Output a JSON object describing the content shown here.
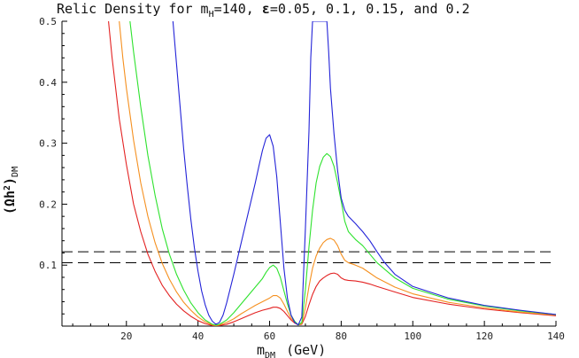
{
  "chart_data": {
    "type": "line",
    "title_parts": {
      "prefix": "Relic Density for m",
      "prefix_sub": "H",
      "middle": "=140, ",
      "epsilon": "ε",
      "suffix": "=0.05, 0.1, 0.15, and 0.2"
    },
    "xlabel_parts": {
      "main": "m",
      "sub": "DM",
      "unit": "(GeV)"
    },
    "ylabel_parts": {
      "main": "(Ωh",
      "sup": "2",
      "close": ")",
      "sub": "DM"
    },
    "xlim": [
      2,
      140
    ],
    "ylim": [
      0,
      0.5
    ],
    "xticks": [
      20,
      40,
      60,
      80,
      100,
      120,
      140
    ],
    "xtick_labels": [
      "20",
      "40",
      "60",
      "80",
      "100",
      "120",
      "140"
    ],
    "yticks": [
      0.1,
      0.2,
      0.3,
      0.4,
      0.5
    ],
    "ytick_labels": [
      "0.1",
      "0.2",
      "0.3",
      "0.4",
      "0.5"
    ],
    "reference_lines": [
      0.104,
      0.122
    ],
    "series": [
      {
        "color": "#e32222",
        "points": [
          [
            15,
            0.5
          ],
          [
            16,
            0.44
          ],
          [
            18,
            0.34
          ],
          [
            20,
            0.265
          ],
          [
            22,
            0.2
          ],
          [
            24,
            0.155
          ],
          [
            26,
            0.118
          ],
          [
            28,
            0.09
          ],
          [
            30,
            0.067
          ],
          [
            32,
            0.05
          ],
          [
            34,
            0.036
          ],
          [
            36,
            0.025
          ],
          [
            38,
            0.016
          ],
          [
            40,
            0.009
          ],
          [
            42,
            0.004
          ],
          [
            44,
            0.001
          ],
          [
            45,
            0.0003
          ],
          [
            46,
            0.001
          ],
          [
            48,
            0.003
          ],
          [
            50,
            0.007
          ],
          [
            52,
            0.012
          ],
          [
            54,
            0.017
          ],
          [
            56,
            0.022
          ],
          [
            58,
            0.026
          ],
          [
            60,
            0.029
          ],
          [
            61,
            0.031
          ],
          [
            62,
            0.031
          ],
          [
            63,
            0.029
          ],
          [
            64,
            0.024
          ],
          [
            65,
            0.017
          ],
          [
            66,
            0.01
          ],
          [
            67,
            0.005
          ],
          [
            68,
            0.002
          ],
          [
            69,
            0.003
          ],
          [
            70,
            0.016
          ],
          [
            71,
            0.035
          ],
          [
            72,
            0.052
          ],
          [
            73,
            0.065
          ],
          [
            74,
            0.074
          ],
          [
            75,
            0.079
          ],
          [
            76,
            0.083
          ],
          [
            77,
            0.086
          ],
          [
            78,
            0.087
          ],
          [
            79,
            0.085
          ],
          [
            80,
            0.079
          ],
          [
            81,
            0.076
          ],
          [
            82,
            0.075
          ],
          [
            84,
            0.074
          ],
          [
            86,
            0.072
          ],
          [
            88,
            0.069
          ],
          [
            90,
            0.065
          ],
          [
            95,
            0.056
          ],
          [
            100,
            0.047
          ],
          [
            110,
            0.036
          ],
          [
            120,
            0.028
          ],
          [
            130,
            0.022
          ],
          [
            140,
            0.017
          ]
        ]
      },
      {
        "color": "#f5901f",
        "points": [
          [
            18,
            0.5
          ],
          [
            19,
            0.44
          ],
          [
            20,
            0.39
          ],
          [
            22,
            0.305
          ],
          [
            24,
            0.235
          ],
          [
            26,
            0.18
          ],
          [
            28,
            0.137
          ],
          [
            30,
            0.103
          ],
          [
            32,
            0.077
          ],
          [
            34,
            0.056
          ],
          [
            36,
            0.039
          ],
          [
            38,
            0.026
          ],
          [
            40,
            0.015
          ],
          [
            42,
            0.007
          ],
          [
            44,
            0.002
          ],
          [
            45,
            0.0008
          ],
          [
            46,
            0.002
          ],
          [
            48,
            0.006
          ],
          [
            50,
            0.012
          ],
          [
            52,
            0.02
          ],
          [
            54,
            0.027
          ],
          [
            56,
            0.034
          ],
          [
            58,
            0.04
          ],
          [
            60,
            0.046
          ],
          [
            61,
            0.05
          ],
          [
            62,
            0.05
          ],
          [
            63,
            0.046
          ],
          [
            64,
            0.036
          ],
          [
            65,
            0.024
          ],
          [
            66,
            0.013
          ],
          [
            67,
            0.006
          ],
          [
            68,
            0.002
          ],
          [
            69,
            0.004
          ],
          [
            70,
            0.03
          ],
          [
            71,
            0.065
          ],
          [
            72,
            0.095
          ],
          [
            73,
            0.115
          ],
          [
            74,
            0.128
          ],
          [
            75,
            0.137
          ],
          [
            76,
            0.142
          ],
          [
            77,
            0.144
          ],
          [
            78,
            0.141
          ],
          [
            79,
            0.132
          ],
          [
            80,
            0.118
          ],
          [
            81,
            0.108
          ],
          [
            82,
            0.104
          ],
          [
            84,
            0.1
          ],
          [
            86,
            0.095
          ],
          [
            88,
            0.087
          ],
          [
            90,
            0.079
          ],
          [
            95,
            0.064
          ],
          [
            100,
            0.053
          ],
          [
            110,
            0.039
          ],
          [
            120,
            0.03
          ],
          [
            130,
            0.023
          ],
          [
            140,
            0.018
          ]
        ]
      },
      {
        "color": "#2ee22e",
        "points": [
          [
            21,
            0.5
          ],
          [
            22,
            0.45
          ],
          [
            24,
            0.36
          ],
          [
            26,
            0.28
          ],
          [
            28,
            0.215
          ],
          [
            30,
            0.16
          ],
          [
            32,
            0.118
          ],
          [
            34,
            0.085
          ],
          [
            36,
            0.059
          ],
          [
            38,
            0.038
          ],
          [
            40,
            0.022
          ],
          [
            42,
            0.01
          ],
          [
            44,
            0.003
          ],
          [
            45,
            0.0015
          ],
          [
            46,
            0.003
          ],
          [
            48,
            0.01
          ],
          [
            50,
            0.022
          ],
          [
            52,
            0.036
          ],
          [
            54,
            0.05
          ],
          [
            56,
            0.064
          ],
          [
            58,
            0.078
          ],
          [
            59,
            0.088
          ],
          [
            60,
            0.096
          ],
          [
            61,
            0.1
          ],
          [
            62,
            0.095
          ],
          [
            63,
            0.08
          ],
          [
            64,
            0.058
          ],
          [
            65,
            0.036
          ],
          [
            66,
            0.018
          ],
          [
            67,
            0.008
          ],
          [
            68,
            0.002
          ],
          [
            69,
            0.006
          ],
          [
            70,
            0.06
          ],
          [
            71,
            0.13
          ],
          [
            72,
            0.19
          ],
          [
            73,
            0.235
          ],
          [
            74,
            0.262
          ],
          [
            75,
            0.277
          ],
          [
            76,
            0.283
          ],
          [
            77,
            0.278
          ],
          [
            78,
            0.262
          ],
          [
            79,
            0.235
          ],
          [
            80,
            0.205
          ],
          [
            81,
            0.172
          ],
          [
            82,
            0.155
          ],
          [
            84,
            0.142
          ],
          [
            86,
            0.132
          ],
          [
            88,
            0.118
          ],
          [
            90,
            0.104
          ],
          [
            95,
            0.079
          ],
          [
            100,
            0.062
          ],
          [
            110,
            0.044
          ],
          [
            120,
            0.033
          ],
          [
            130,
            0.025
          ],
          [
            140,
            0.019
          ]
        ]
      },
      {
        "color": "#2323d8",
        "points": [
          [
            33,
            0.5
          ],
          [
            34,
            0.43
          ],
          [
            35,
            0.36
          ],
          [
            36,
            0.29
          ],
          [
            37,
            0.23
          ],
          [
            38,
            0.175
          ],
          [
            39,
            0.128
          ],
          [
            40,
            0.09
          ],
          [
            41,
            0.058
          ],
          [
            42,
            0.035
          ],
          [
            43,
            0.018
          ],
          [
            44,
            0.008
          ],
          [
            45,
            0.003
          ],
          [
            46,
            0.006
          ],
          [
            47,
            0.018
          ],
          [
            48,
            0.038
          ],
          [
            50,
            0.085
          ],
          [
            52,
            0.135
          ],
          [
            54,
            0.185
          ],
          [
            56,
            0.235
          ],
          [
            57,
            0.262
          ],
          [
            58,
            0.288
          ],
          [
            59,
            0.308
          ],
          [
            60,
            0.314
          ],
          [
            61,
            0.295
          ],
          [
            62,
            0.245
          ],
          [
            63,
            0.17
          ],
          [
            64,
            0.095
          ],
          [
            65,
            0.045
          ],
          [
            66,
            0.018
          ],
          [
            67,
            0.006
          ],
          [
            68,
            0.002
          ],
          [
            69,
            0.015
          ],
          [
            70,
            0.16
          ],
          [
            71,
            0.32
          ],
          [
            71.5,
            0.44
          ],
          [
            72,
            0.5
          ],
          [
            76,
            0.5
          ],
          [
            76.5,
            0.45
          ],
          [
            77,
            0.39
          ],
          [
            78,
            0.315
          ],
          [
            79,
            0.255
          ],
          [
            80,
            0.21
          ],
          [
            81,
            0.19
          ],
          [
            82,
            0.18
          ],
          [
            84,
            0.168
          ],
          [
            86,
            0.155
          ],
          [
            88,
            0.14
          ],
          [
            90,
            0.122
          ],
          [
            92,
            0.105
          ],
          [
            95,
            0.085
          ],
          [
            100,
            0.065
          ],
          [
            110,
            0.046
          ],
          [
            120,
            0.034
          ],
          [
            130,
            0.026
          ],
          [
            140,
            0.019
          ]
        ]
      }
    ]
  }
}
